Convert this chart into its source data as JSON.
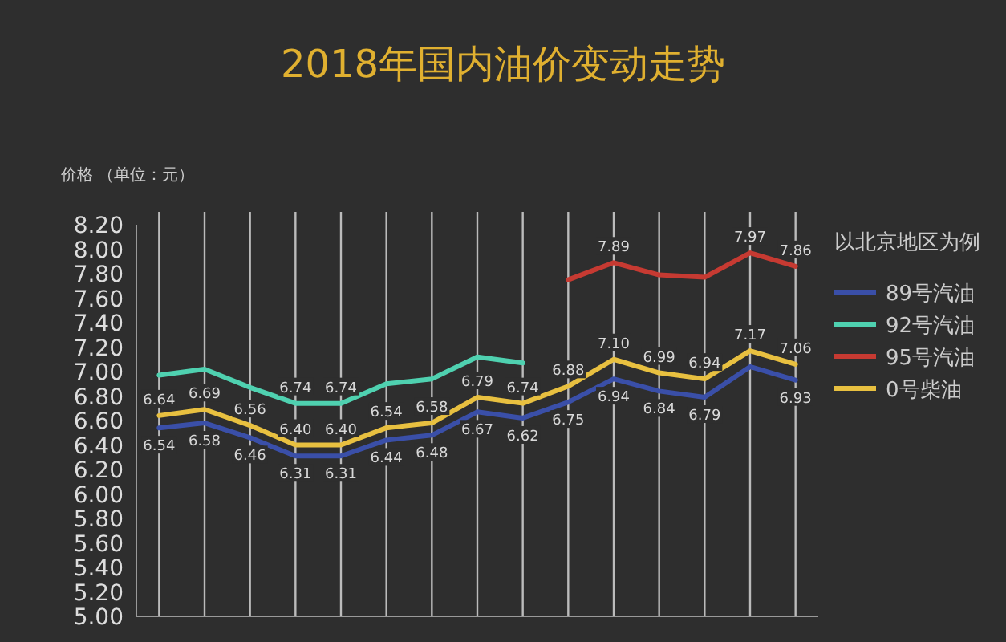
{
  "chart_data": {
    "type": "line",
    "title": "2018年国内油价变动走势",
    "ylabel": "价格 （单位：元）",
    "annotations": [
      "以北京地区为例"
    ],
    "categories": [
      null,
      null,
      null,
      null,
      null,
      null,
      null,
      null,
      null,
      null,
      null,
      null,
      null,
      null,
      null
    ],
    "series": [
      {
        "name": "89号汽油",
        "color": "#3a4fa8",
        "values": [
          6.54,
          6.58,
          6.46,
          6.31,
          6.31,
          6.44,
          6.48,
          6.67,
          6.62,
          6.75,
          6.94,
          6.84,
          6.79,
          7.04,
          6.93
        ],
        "value_labels": [
          "6.54",
          "6.58",
          "6.46",
          "6.31",
          "6.31",
          "6.44",
          "6.48",
          "6.67",
          "6.62",
          "6.75",
          "6.94",
          "6.84",
          "6.79",
          null,
          "6.93"
        ]
      },
      {
        "name": "92号汽油",
        "color": "#4fd1b0",
        "values": [
          6.97,
          7.02,
          6.87,
          6.74,
          6.74,
          6.9,
          6.94,
          7.12,
          7.07,
          null,
          null,
          null,
          null,
          null,
          null
        ],
        "value_labels": [
          null,
          null,
          null,
          "6.74",
          "6.74",
          null,
          null,
          null,
          null,
          null,
          null,
          null,
          null,
          null,
          null
        ]
      },
      {
        "name": "95号汽油",
        "color": "#c63a32",
        "values": [
          null,
          null,
          null,
          null,
          null,
          null,
          null,
          null,
          null,
          7.75,
          7.89,
          7.79,
          7.77,
          7.97,
          7.86
        ],
        "value_labels": [
          null,
          null,
          null,
          null,
          null,
          null,
          null,
          null,
          null,
          null,
          "7.89",
          null,
          null,
          "7.97",
          "7.86"
        ]
      },
      {
        "name": "0号柴油",
        "color": "#e8c040",
        "values": [
          6.64,
          6.69,
          6.56,
          6.4,
          6.4,
          6.54,
          6.58,
          6.79,
          6.74,
          6.88,
          7.1,
          6.99,
          6.94,
          7.17,
          7.06
        ],
        "value_labels": [
          "6.64",
          "6.69",
          "6.56",
          "6.40",
          "6.40",
          "6.54",
          "6.58",
          "6.79",
          "6.74",
          "6.88",
          "7.10",
          "6.99",
          "6.94",
          "7.17",
          "7.06"
        ]
      }
    ],
    "ylim": [
      5.0,
      8.2
    ],
    "yticks": [
      {
        "value": 5.0,
        "label": "5.00"
      },
      {
        "value": 5.2,
        "label": "5.20"
      },
      {
        "value": 5.4,
        "label": "5.40"
      },
      {
        "value": 5.6,
        "label": "5.60"
      },
      {
        "value": 5.8,
        "label": "5.80"
      },
      {
        "value": 6.0,
        "label": "6.00"
      },
      {
        "value": 6.2,
        "label": "6.20"
      },
      {
        "value": 6.4,
        "label": "6.40"
      },
      {
        "value": 6.6,
        "label": "6.60"
      },
      {
        "value": 6.8,
        "label": "6.80"
      },
      {
        "value": 7.0,
        "label": "7.00"
      },
      {
        "value": 7.2,
        "label": "7.20"
      },
      {
        "value": 7.4,
        "label": "7.40"
      },
      {
        "value": 7.6,
        "label": "7.60"
      },
      {
        "value": 7.8,
        "label": "7.80"
      },
      {
        "value": 8.0,
        "label": "8.00"
      },
      {
        "value": 8.2,
        "label": "8.20"
      }
    ],
    "grid": "x",
    "legend": "top right",
    "marker": "none",
    "line_style": "solid"
  }
}
